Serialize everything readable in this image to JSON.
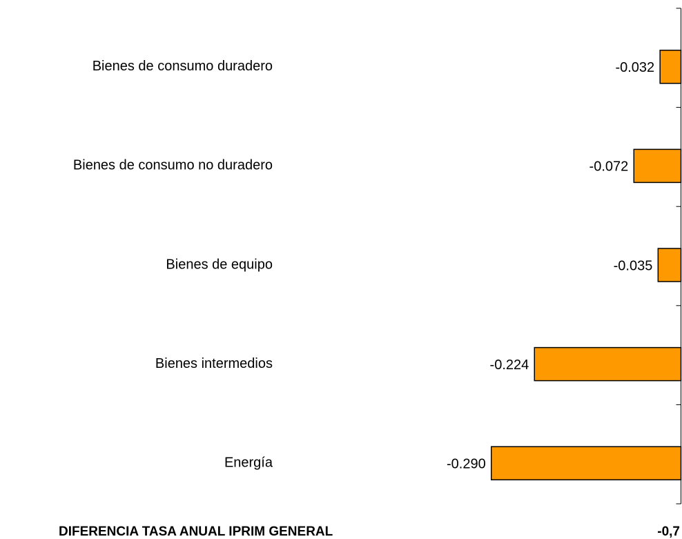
{
  "chart_data": {
    "type": "barh",
    "categories": [
      "Bienes de consumo duradero",
      "Bienes de consumo no duradero",
      "Bienes de equipo",
      "Bienes intermedios",
      "Energía"
    ],
    "values": [
      -0.032,
      -0.072,
      -0.035,
      -0.224,
      -0.29
    ],
    "value_labels": [
      "-0.032",
      "-0.072",
      "-0.035",
      "-0.224",
      "-0.290"
    ],
    "color": "#ff9900",
    "xlim": [
      -0.6,
      0
    ],
    "summary": {
      "label": "DIFERENCIA TASA ANUAL IPRIM GENERAL",
      "value": "-0,7"
    }
  }
}
